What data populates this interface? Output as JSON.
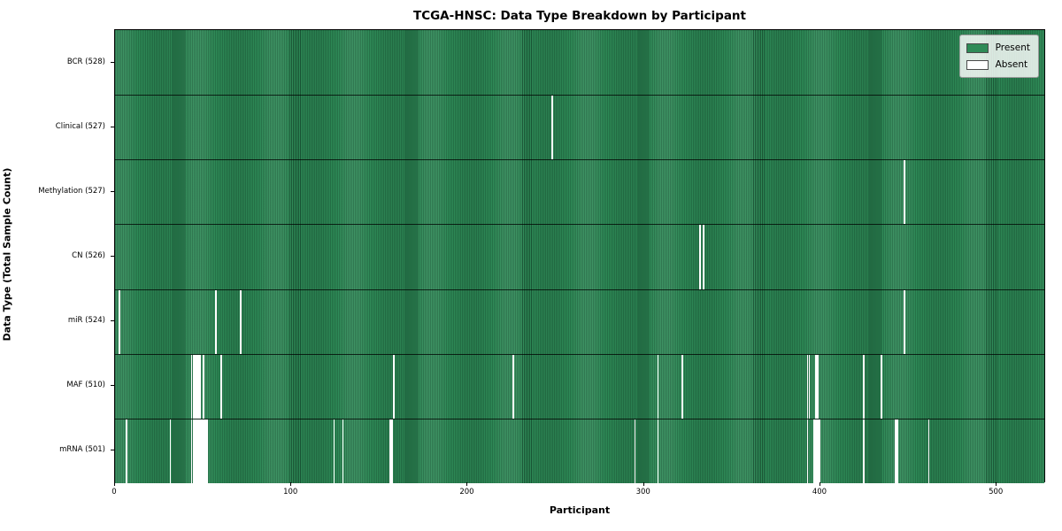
{
  "chart_data": {
    "type": "heatmap",
    "title": "TCGA-HNSC: Data Type Breakdown by Participant",
    "xlabel": "Participant",
    "ylabel": "Data Type (Total Sample Count)",
    "n_participants": 528,
    "x_ticks": [
      0,
      100,
      200,
      300,
      400,
      500
    ],
    "grid": false,
    "legend_position": "upper right",
    "colors": {
      "present": "#2e8b57",
      "absent": "#ffffff",
      "row_divider": "#000000"
    },
    "legend": [
      {
        "label": "Present",
        "color": "#2e8b57"
      },
      {
        "label": "Absent",
        "color": "#ffffff"
      }
    ],
    "rows": [
      {
        "label": "BCR (528)",
        "data_type": "BCR",
        "total": 528,
        "absent_participants": []
      },
      {
        "label": "Clinical (527)",
        "data_type": "Clinical",
        "total": 527,
        "absent_participants": [
          248
        ]
      },
      {
        "label": "Methylation (527)",
        "data_type": "Methylation",
        "total": 527,
        "absent_participants": [
          448
        ]
      },
      {
        "label": "CN (526)",
        "data_type": "CN",
        "total": 526,
        "absent_participants": [
          332,
          334
        ]
      },
      {
        "label": "miR (524)",
        "data_type": "miR",
        "total": 524,
        "absent_participants": [
          2,
          57,
          71,
          448
        ]
      },
      {
        "label": "MAF (510)",
        "data_type": "MAF",
        "total": 510,
        "absent_participants": [
          43,
          44,
          45,
          46,
          47,
          48,
          50,
          60,
          158,
          226,
          308,
          322,
          393,
          394,
          398,
          399,
          425,
          435
        ]
      },
      {
        "label": "mRNA (501)",
        "data_type": "mRNA",
        "total": 501,
        "absent_participants": [
          6,
          31,
          43,
          44,
          45,
          46,
          47,
          48,
          49,
          50,
          51,
          52,
          124,
          129,
          156,
          157,
          295,
          308,
          393,
          397,
          398,
          399,
          400,
          425,
          443,
          444,
          462
        ]
      }
    ]
  }
}
